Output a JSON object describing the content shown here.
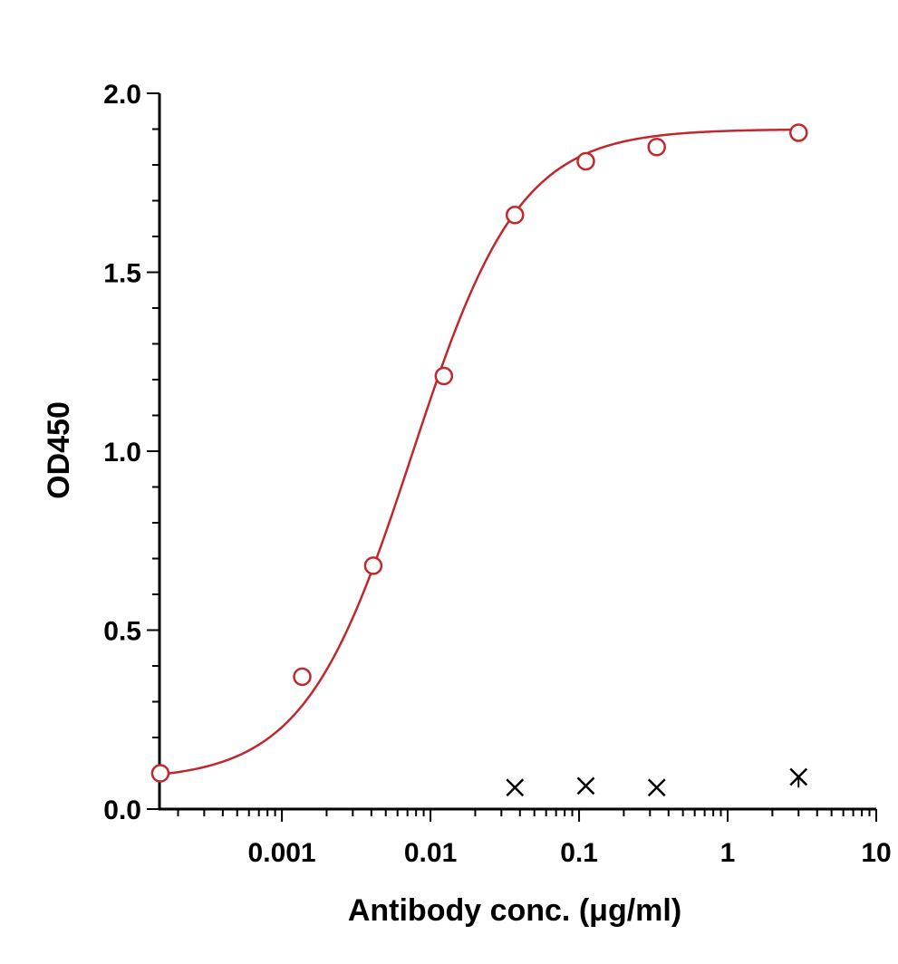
{
  "chart_data": {
    "type": "scatter",
    "title": "",
    "xlabel": "Antibody conc. (μg/ml)",
    "ylabel": "OD450",
    "xscale": "log",
    "xlim": [
      0.00015,
      10
    ],
    "ylim": [
      0,
      2.0
    ],
    "grid": false,
    "x_tick_labels": [
      {
        "value": 0.001,
        "label": "0.001"
      },
      {
        "value": 0.01,
        "label": "0.01"
      },
      {
        "value": 0.1,
        "label": "0.1"
      },
      {
        "value": 1,
        "label": "1"
      },
      {
        "value": 10,
        "label": "10"
      }
    ],
    "y_tick_labels": [
      {
        "value": 0.0,
        "label": "0.0"
      },
      {
        "value": 0.5,
        "label": "0.5"
      },
      {
        "value": 1.0,
        "label": "1.0"
      },
      {
        "value": 1.5,
        "label": "1.5"
      },
      {
        "value": 2.0,
        "label": "2.0"
      }
    ],
    "series": [
      {
        "marker": "circle",
        "color": "#c0282d",
        "fit": "4PL",
        "fit_params": {
          "bottom": 0.08,
          "top": 1.9,
          "ec50": 0.0075,
          "hill": 1.2
        },
        "points": [
          {
            "x": 0.000152,
            "y": 0.1
          },
          {
            "x": 0.00137,
            "y": 0.37
          },
          {
            "x": 0.00412,
            "y": 0.68
          },
          {
            "x": 0.0123,
            "y": 1.21
          },
          {
            "x": 0.037,
            "y": 1.66
          },
          {
            "x": 0.111,
            "y": 1.81
          },
          {
            "x": 0.333,
            "y": 1.85
          },
          {
            "x": 3.0,
            "y": 1.89
          }
        ]
      },
      {
        "marker": "x",
        "color": "#000000",
        "points": [
          {
            "x": 0.037,
            "y": 0.06
          },
          {
            "x": 0.111,
            "y": 0.065
          },
          {
            "x": 0.333,
            "y": 0.06
          },
          {
            "x": 3.0,
            "y": 0.09,
            "error_low": 0.03,
            "error_high": 0.0
          }
        ]
      }
    ]
  }
}
